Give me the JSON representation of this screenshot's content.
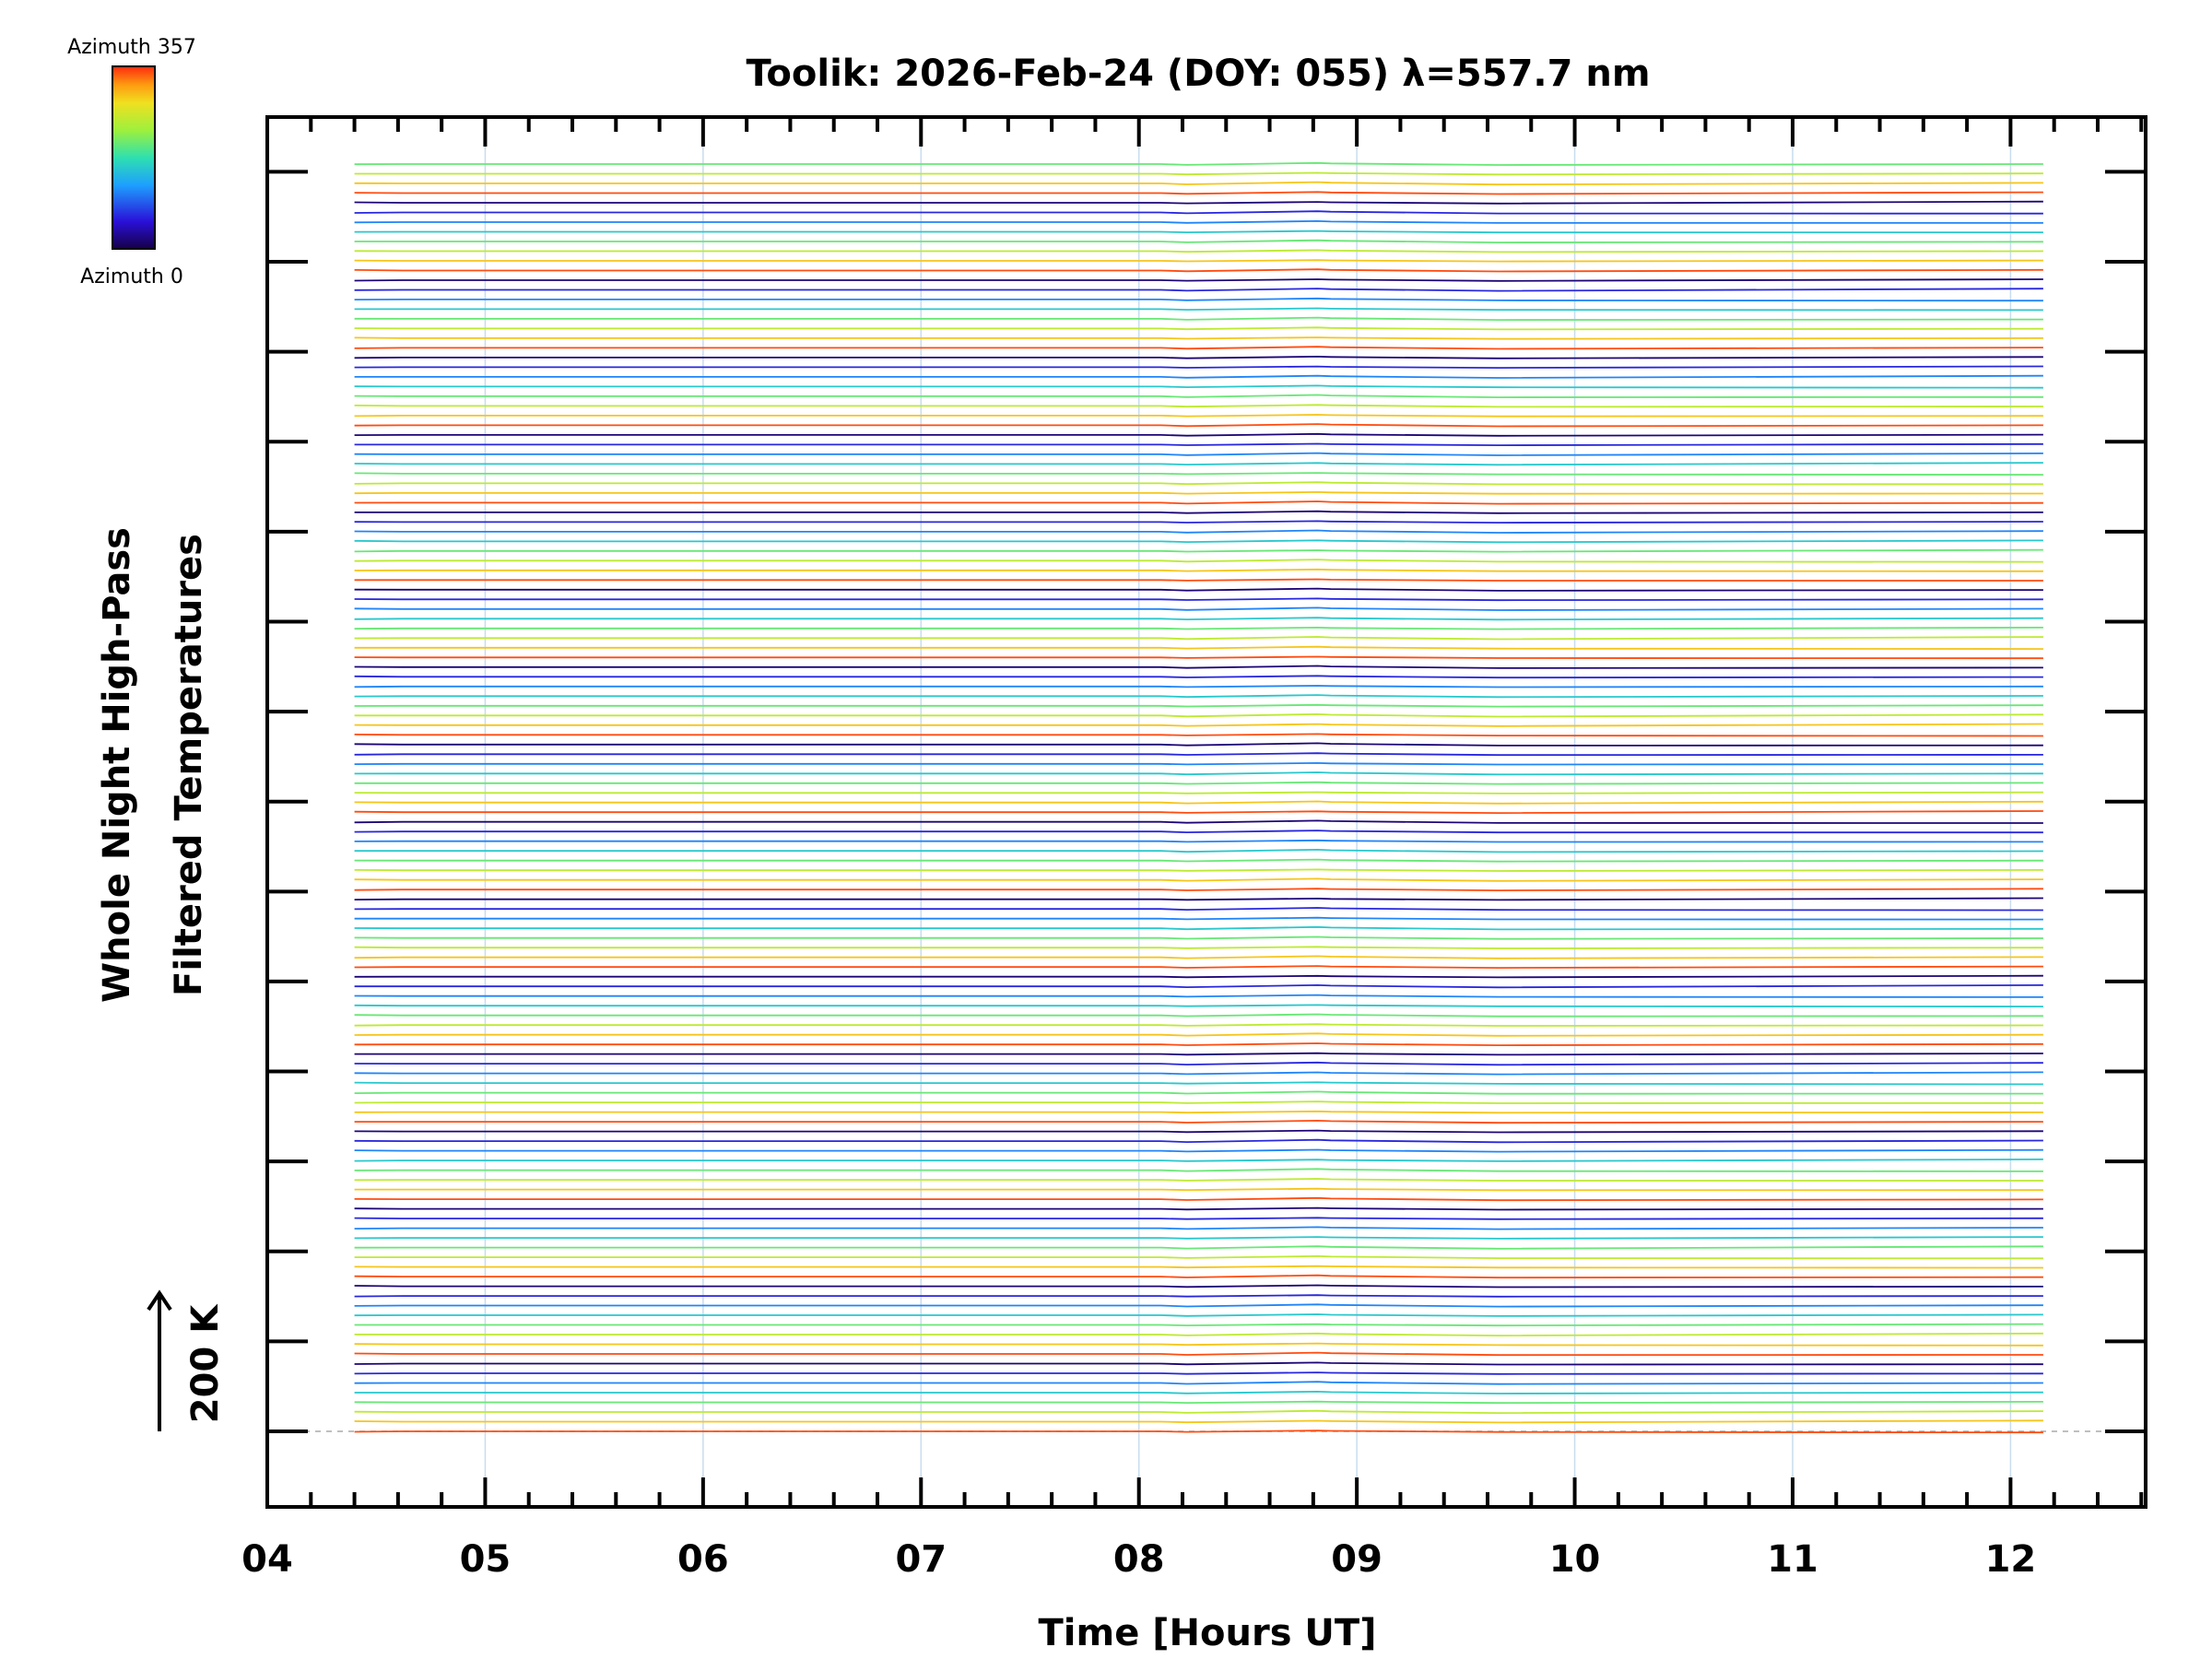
{
  "chart_data": {
    "type": "line",
    "title": "Toolik: 2026-Feb-24 (DOY: 055) λ=557.7 nm",
    "xlabel": "Time [Hours UT]",
    "ylabel_lines": [
      "Whole Night High-Pass",
      "Filtered Temperatures"
    ],
    "scale_label": "200 K",
    "colorbar": {
      "top_label": "Azimuth 357",
      "bottom_label": "Azimuth 0",
      "colormap": "rainbow"
    },
    "xlim": [
      4.0,
      12.62
    ],
    "x_ticks": [
      4,
      5,
      6,
      7,
      8,
      9,
      10,
      11,
      12
    ],
    "x_tick_labels": [
      "04",
      "05",
      "06",
      "07",
      "08",
      "09",
      "10",
      "11",
      "12"
    ],
    "grid": true,
    "x": [
      4.4,
      4.62,
      8.1,
      8.22,
      8.82,
      8.88,
      9.65,
      12.15
    ],
    "profile": [
      0,
      0,
      0,
      -2.5,
      3.5,
      2.0,
      -3.0,
      0
    ],
    "series_count": 132,
    "stack_spacing_K": 37,
    "stack_unit": "K",
    "groups_of": 8
  }
}
